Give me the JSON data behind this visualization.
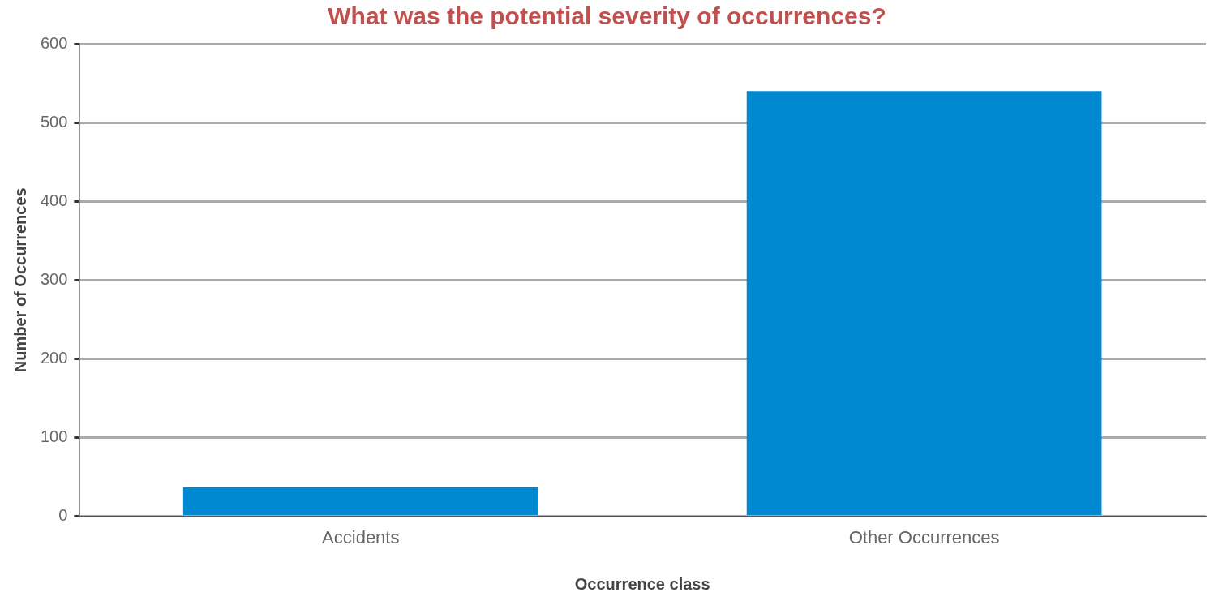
{
  "chart_data": {
    "type": "bar",
    "title": "What was the potential severity of occurrences?",
    "categories": [
      "Accidents",
      "Other Occurrences"
    ],
    "values": [
      37,
      540
    ],
    "color": "#0088d1",
    "xlabel": "Occurrence class",
    "ylabel": "Number of Occurrences",
    "ylim": [
      0,
      600
    ],
    "yticks": [
      0,
      100,
      200,
      300,
      400,
      500,
      600
    ],
    "grid": "y",
    "legend": false
  }
}
